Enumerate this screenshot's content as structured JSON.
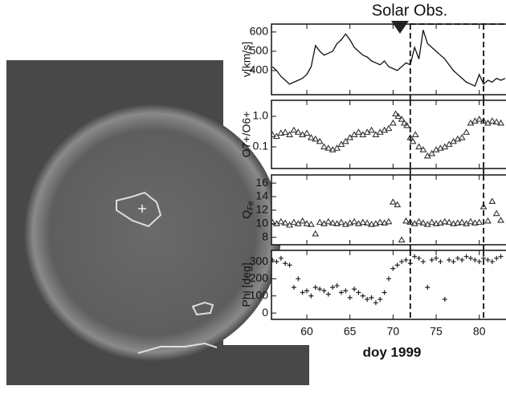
{
  "chart_data": [
    {
      "type": "line",
      "title": "Solar Obs.",
      "ylabel": "v[km/s]",
      "color": "#111111",
      "x": [
        56,
        56.5,
        57,
        57.5,
        58,
        58.5,
        59,
        59.5,
        60,
        60.5,
        61,
        61.5,
        62,
        62.5,
        63,
        63.5,
        64,
        64.5,
        65,
        65.5,
        66,
        66.5,
        67,
        67.5,
        68,
        68.5,
        69,
        69.5,
        70,
        70.5,
        71,
        71.5,
        72,
        72.5,
        73,
        73.5,
        74,
        74.5,
        75,
        75.5,
        76,
        76.5,
        77,
        77.5,
        78,
        78.5,
        79,
        79.5,
        80,
        80.5,
        81,
        81.5,
        82,
        82.5,
        83
      ],
      "values": [
        420,
        400,
        370,
        350,
        330,
        340,
        350,
        360,
        380,
        420,
        530,
        500,
        480,
        490,
        500,
        540,
        560,
        590,
        560,
        520,
        500,
        480,
        470,
        450,
        440,
        430,
        450,
        420,
        410,
        400,
        420,
        440,
        430,
        520,
        460,
        610,
        540,
        520,
        500,
        480,
        460,
        430,
        400,
        380,
        360,
        340,
        330,
        320,
        380,
        330,
        350,
        340,
        360,
        350,
        360
      ],
      "xlim": [
        55.9,
        83.1
      ],
      "xticks": [
        60,
        65,
        70,
        75,
        80
      ],
      "ylim": [
        275,
        641
      ],
      "yticks": [
        400,
        500,
        600
      ],
      "vlines": [
        72,
        80.5
      ],
      "event_marker": 70.8
    },
    {
      "type": "scatter",
      "ylabel": "O7+/O6+",
      "marker": "triangle",
      "color": "#333333",
      "yscale": "log",
      "x": [
        56,
        56.5,
        57,
        57.5,
        58,
        58.5,
        59,
        59.5,
        60,
        60.5,
        61,
        61.5,
        62,
        62.5,
        63,
        63.5,
        64,
        64.5,
        65,
        65.5,
        66,
        66.5,
        67,
        67.5,
        68,
        68.5,
        69,
        69.5,
        70,
        70.3,
        70.6,
        71,
        71.3,
        71.6,
        72,
        72.3,
        72.6,
        73,
        73.5,
        74,
        74.5,
        75,
        75.5,
        76,
        76.5,
        77,
        77.5,
        78,
        78.5,
        79,
        79.5,
        80,
        80.5,
        81,
        81.5,
        82,
        82.5
      ],
      "values": [
        0.25,
        0.22,
        0.28,
        0.3,
        0.25,
        0.35,
        0.3,
        0.25,
        0.28,
        0.2,
        0.18,
        0.15,
        0.1,
        0.09,
        0.08,
        0.09,
        0.12,
        0.15,
        0.2,
        0.25,
        0.3,
        0.25,
        0.3,
        0.35,
        0.25,
        0.3,
        0.35,
        0.4,
        0.6,
        1.2,
        1.0,
        0.8,
        0.6,
        0.5,
        0.2,
        0.15,
        0.25,
        0.1,
        0.08,
        0.05,
        0.06,
        0.08,
        0.09,
        0.1,
        0.12,
        0.15,
        0.18,
        0.2,
        0.3,
        0.6,
        0.7,
        0.8,
        0.7,
        0.6,
        0.7,
        0.65,
        0.6
      ],
      "xlim": [
        55.9,
        83.1
      ],
      "xticks": [
        60,
        65,
        70,
        75,
        80
      ],
      "ylim": [
        0.0195,
        3.36
      ],
      "yticks": [
        0.1,
        {
          "value": 1.0,
          "label": "1.0"
        }
      ],
      "vlines": [
        72,
        80.5
      ]
    },
    {
      "type": "scatter",
      "ylabel": "Q",
      "ylabel_sub": "Fe",
      "marker": "triangle",
      "color": "#333333",
      "x": [
        56,
        56.5,
        57,
        57.5,
        58,
        58.5,
        59,
        59.5,
        60,
        60.5,
        61,
        61.5,
        62,
        62.5,
        63,
        63.5,
        64,
        64.5,
        65,
        65.5,
        66,
        66.5,
        67,
        67.5,
        68,
        68.5,
        69,
        69.5,
        70,
        70.5,
        71,
        71.5,
        72,
        72.5,
        73,
        73.5,
        74,
        74.5,
        75,
        75.5,
        76,
        76.5,
        77,
        77.5,
        78,
        78.5,
        79,
        79.5,
        80,
        80.5,
        81,
        81.5,
        82,
        82.5
      ],
      "values": [
        10.2,
        10,
        10.3,
        10.1,
        9.8,
        10.2,
        10,
        10.4,
        10,
        9.9,
        8.5,
        10.2,
        10,
        10.3,
        10.1,
        10,
        10.2,
        9.9,
        10.1,
        10.3,
        10,
        10.2,
        10.1,
        9.9,
        10,
        10.2,
        10.1,
        10.3,
        13.2,
        12.8,
        7.6,
        10.4,
        10.2,
        10,
        10.3,
        10.1,
        9.9,
        10.2,
        10,
        10.1,
        10.3,
        10.2,
        10,
        10.1,
        10.2,
        10,
        10.3,
        10.1,
        10.2,
        12.5,
        10.4,
        13.3,
        11.5,
        10.5
      ],
      "xlim": [
        55.9,
        83.1
      ],
      "xticks": [
        60,
        65,
        70,
        75,
        80
      ],
      "ylim": [
        6.9,
        17.2
      ],
      "yticks": [
        8,
        10,
        12,
        14,
        16
      ],
      "vlines": [
        72,
        80.5
      ]
    },
    {
      "type": "scatter",
      "ylabel": "Phi [deg]",
      "xlabel": "doy 1999",
      "marker": "plus",
      "color": "#222222",
      "x": [
        56,
        56.5,
        57,
        57.5,
        58,
        58.5,
        59,
        59.5,
        60,
        60.5,
        61,
        61.5,
        62,
        62.5,
        63,
        63.5,
        64,
        64.5,
        65,
        65.5,
        66,
        66.5,
        67,
        67.5,
        68,
        68.5,
        69,
        69.5,
        70,
        70.5,
        71,
        71.5,
        72,
        72.5,
        73,
        73.5,
        74,
        74.5,
        75,
        75.5,
        76,
        76.5,
        77,
        77.5,
        78,
        78.5,
        79,
        79.5,
        80,
        80.5,
        81,
        81.5,
        82,
        82.5
      ],
      "values": [
        310,
        300,
        320,
        290,
        280,
        150,
        200,
        120,
        130,
        100,
        150,
        140,
        130,
        110,
        150,
        160,
        120,
        130,
        90,
        140,
        120,
        100,
        80,
        90,
        60,
        80,
        120,
        200,
        260,
        280,
        300,
        310,
        290,
        330,
        320,
        300,
        150,
        310,
        320,
        300,
        80,
        310,
        300,
        320,
        310,
        330,
        320,
        310,
        300,
        320,
        310,
        300,
        320,
        330
      ],
      "xlim": [
        55.9,
        83.1
      ],
      "xticks": [
        60,
        65,
        70,
        75,
        80
      ],
      "ylim": [
        -37,
        366
      ],
      "yticks": [
        0,
        100,
        200,
        300
      ],
      "vlines": [
        72,
        80.5
      ]
    }
  ]
}
